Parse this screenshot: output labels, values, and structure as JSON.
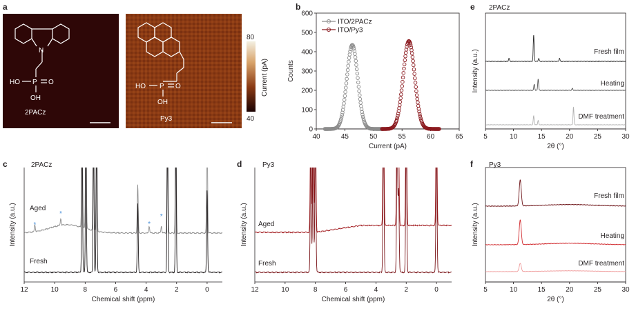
{
  "panel_a": {
    "label": "a",
    "left_name": "2PACz",
    "right_name": "Py3",
    "mol_left_p_labels": {
      "ho": "HO",
      "p": "P",
      "o": "O",
      "oh": "OH"
    },
    "mol_left_n": "N",
    "mol_right_p_labels": {
      "ho": "HO",
      "p": "P",
      "o": "O",
      "oh": "OH"
    },
    "colorbar": {
      "max": "80",
      "min": "40",
      "label": "Current (pA)"
    }
  },
  "chart_data": [
    {
      "panel": "b",
      "type": "scatter",
      "xlabel": "Current (pA)",
      "ylabel": "Counts",
      "xlim": [
        40,
        65
      ],
      "ylim": [
        0,
        600
      ],
      "xticks": [
        "40",
        "45",
        "50",
        "55",
        "60",
        "65"
      ],
      "yticks": [
        "0",
        "100",
        "200",
        "300",
        "400",
        "500",
        "600"
      ],
      "legend_position": "top-left",
      "series": [
        {
          "name": "ITO/2PACz",
          "color": "#8c8c8c",
          "center": 46.3,
          "sigma": 0.95,
          "peak": 435,
          "range": [
            41.5,
            51.5
          ]
        },
        {
          "name": "ITO/Py3",
          "color": "#8b1a1f",
          "center": 56.2,
          "sigma": 1.0,
          "peak": 455,
          "range": [
            51.5,
            61.5
          ]
        }
      ]
    },
    {
      "panel": "c",
      "type": "line",
      "title": "2PACz",
      "xlabel": "Chemical shift (ppm)",
      "ylabel": "Intensity (a.u.)",
      "xlim": [
        12,
        -1
      ],
      "xticks": [
        "12",
        "10",
        "8",
        "6",
        "4",
        "2",
        "0"
      ],
      "series": [
        {
          "name": "Aged",
          "color": "#8c8c8c",
          "peaks": [
            [
              8.2,
              1
            ],
            [
              7.95,
              1
            ],
            [
              7.45,
              1
            ],
            [
              7.25,
              1
            ],
            [
              4.55,
              0.35
            ],
            [
              2.6,
              1
            ],
            [
              2.05,
              1
            ],
            [
              0.0,
              0.8
            ]
          ],
          "starred_peaks_ppm": [
            11.3,
            9.6,
            3.8,
            3.0
          ]
        },
        {
          "name": "Fresh",
          "color": "#231f20",
          "peaks": [
            [
              8.2,
              1
            ],
            [
              7.95,
              1
            ],
            [
              7.45,
              1
            ],
            [
              7.25,
              1
            ],
            [
              4.55,
              0.5
            ],
            [
              2.6,
              1
            ],
            [
              2.05,
              1
            ],
            [
              0.0,
              0.6
            ]
          ]
        }
      ],
      "annotation": "*"
    },
    {
      "panel": "d",
      "type": "line",
      "title": "Py3",
      "xlabel": "Chemical shift (ppm)",
      "ylabel": "Intensity (a.u.)",
      "xlim": [
        12,
        -1
      ],
      "xticks": [
        "12",
        "10",
        "8",
        "6",
        "4",
        "2",
        "0"
      ],
      "series": [
        {
          "name": "Aged",
          "color": "#a31d21",
          "peaks": [
            [
              8.3,
              1
            ],
            [
              8.15,
              1
            ],
            [
              8.0,
              1
            ],
            [
              3.5,
              1
            ],
            [
              2.6,
              1
            ],
            [
              2.5,
              0.6
            ],
            [
              2.0,
              1
            ],
            [
              0.0,
              1
            ]
          ]
        },
        {
          "name": "Fresh",
          "color": "#7a1418",
          "peaks": [
            [
              8.3,
              1
            ],
            [
              8.15,
              1
            ],
            [
              8.0,
              1
            ],
            [
              3.5,
              1
            ],
            [
              2.6,
              1
            ],
            [
              2.5,
              0.6
            ],
            [
              2.0,
              1
            ],
            [
              0.0,
              1
            ]
          ]
        }
      ]
    },
    {
      "panel": "e",
      "type": "line",
      "title": "2PACz",
      "xlabel": "2θ (°)",
      "ylabel": "Intensity (a.u.)",
      "xlim": [
        5,
        30
      ],
      "xticks": [
        "5",
        "10",
        "15",
        "20",
        "25",
        "30"
      ],
      "series": [
        {
          "name": "Fresh film",
          "color": "#2b2b2b",
          "peaks": [
            [
              9.2,
              0.12
            ],
            [
              13.6,
              1
            ],
            [
              14.5,
              0.12
            ],
            [
              18.2,
              0.12
            ]
          ]
        },
        {
          "name": "Heating",
          "color": "#555555",
          "peaks": [
            [
              13.7,
              0.3
            ],
            [
              14.4,
              0.55
            ],
            [
              20.5,
              0.1
            ]
          ]
        },
        {
          "name": "DMF treatment",
          "color": "#b0b0b0",
          "peaks": [
            [
              13.6,
              0.5
            ],
            [
              14.4,
              0.25
            ],
            [
              20.7,
              1
            ]
          ]
        }
      ]
    },
    {
      "panel": "f",
      "type": "line",
      "title": "Py3",
      "xlabel": "2θ (°)",
      "ylabel": "Intensity (a.u.)",
      "xlim": [
        5,
        30
      ],
      "xticks": [
        "5",
        "10",
        "15",
        "20",
        "25",
        "30"
      ],
      "series": [
        {
          "name": "Fresh film",
          "color": "#6b1014",
          "peaks": [
            [
              11.2,
              1
            ]
          ]
        },
        {
          "name": "Heating",
          "color": "#d12a2e",
          "peaks": [
            [
              11.2,
              1
            ]
          ]
        },
        {
          "name": "DMF treatment",
          "color": "#ef9a9a",
          "peaks": [
            [
              11.2,
              0.6
            ]
          ]
        }
      ]
    }
  ]
}
